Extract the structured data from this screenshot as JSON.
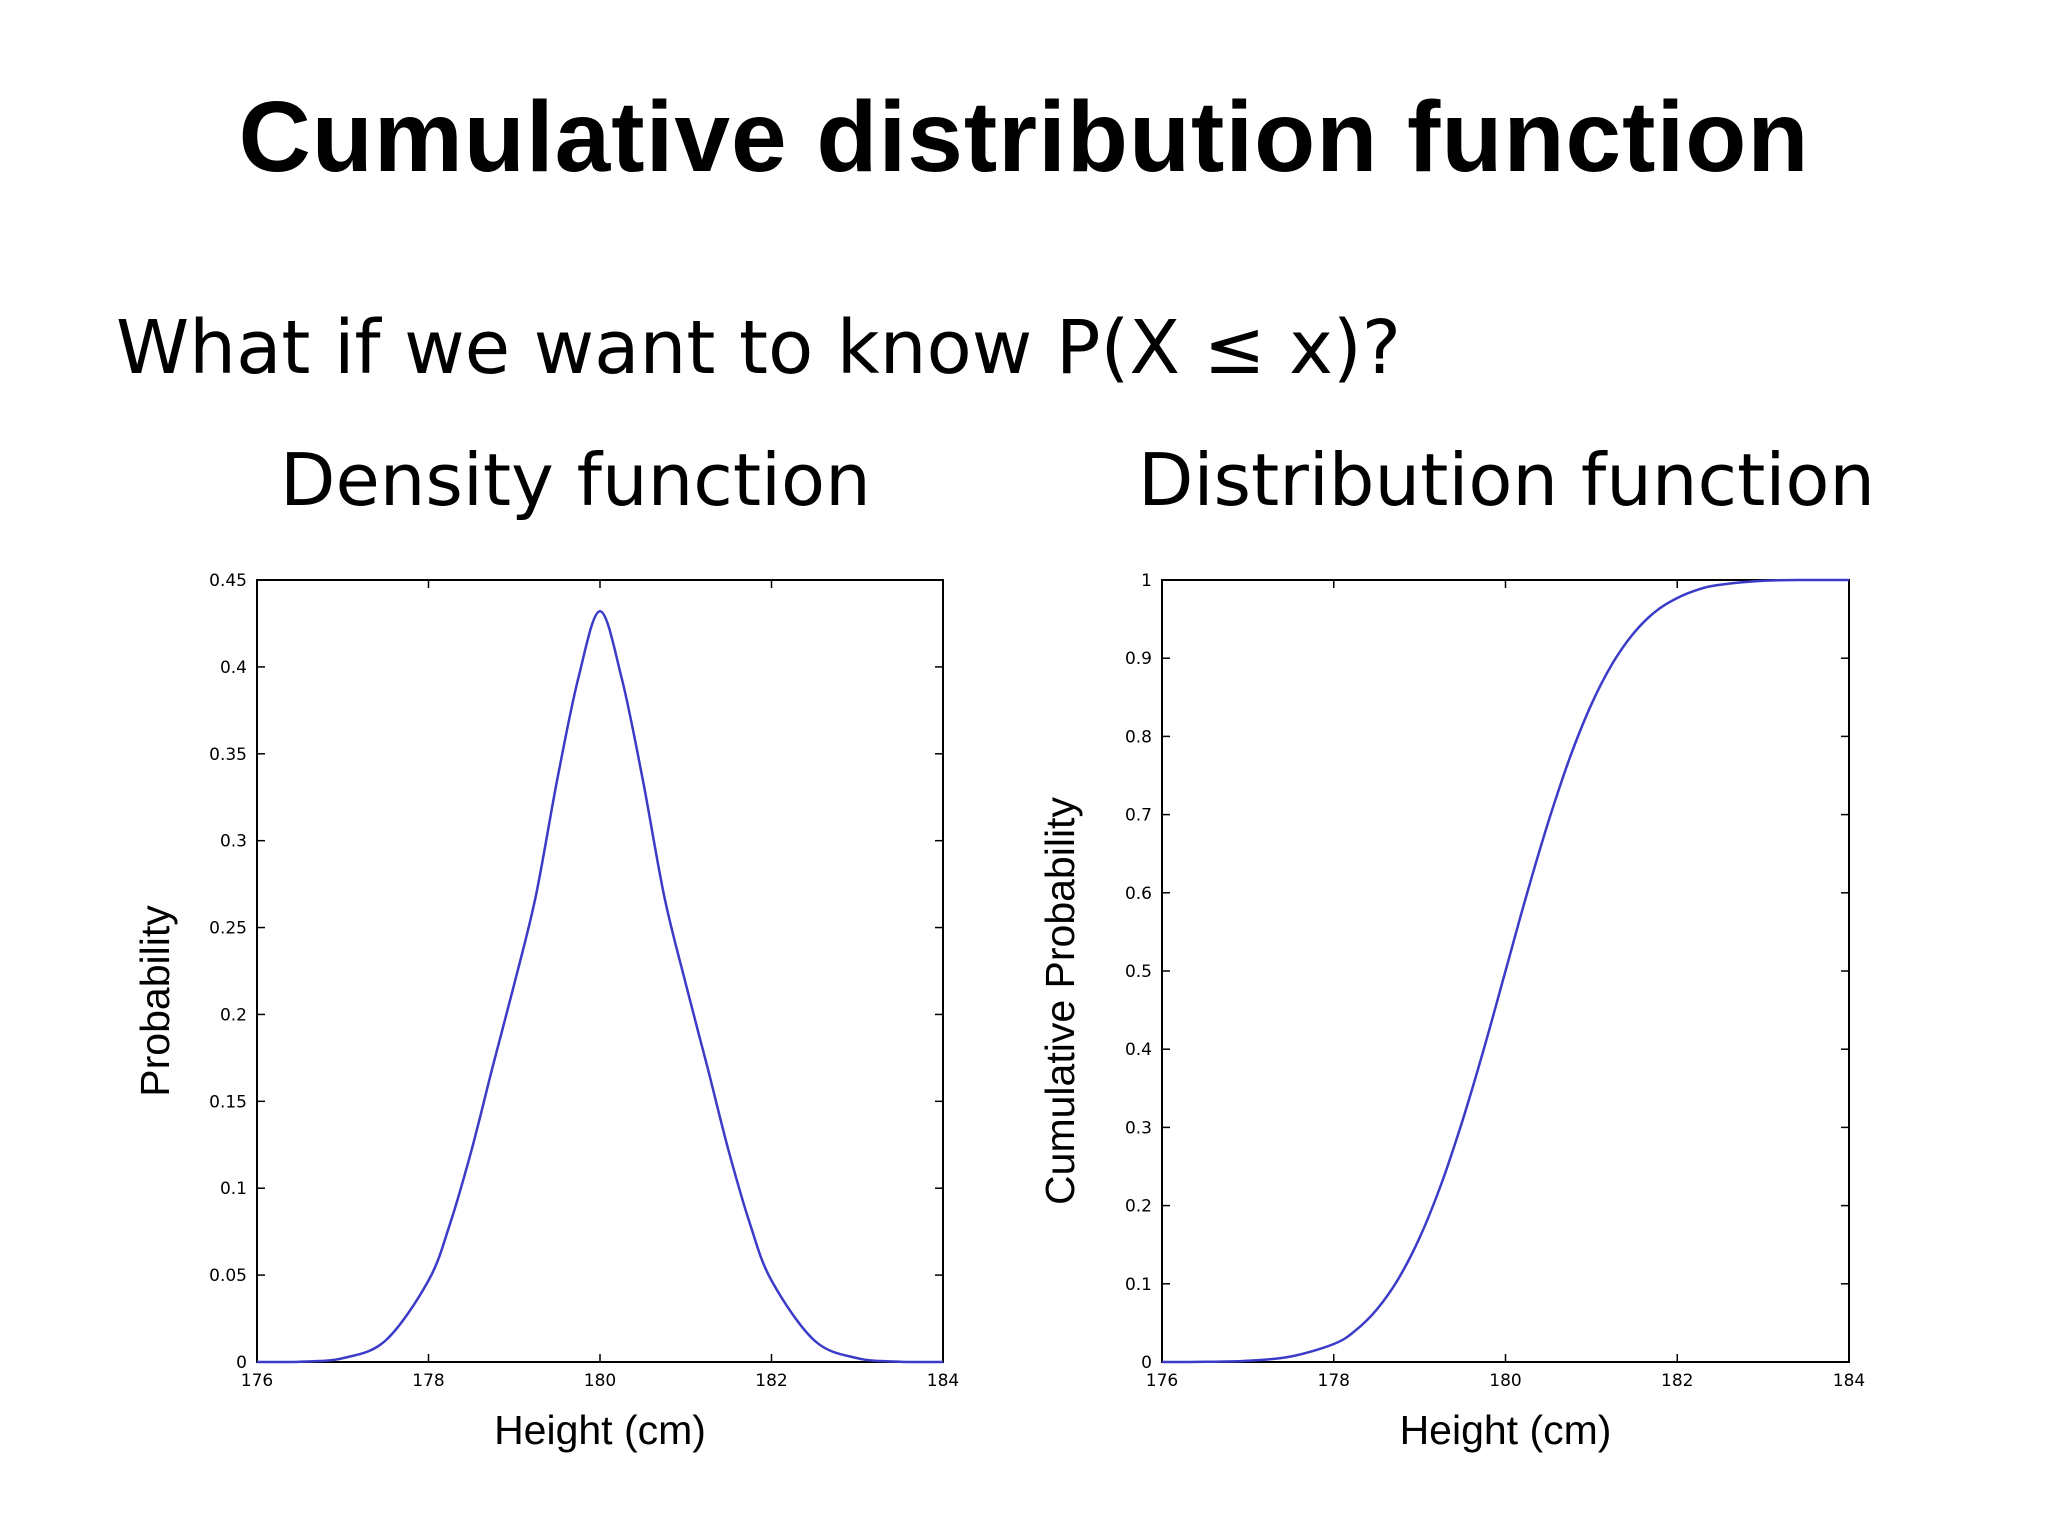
{
  "slide": {
    "title": "Cumulative distribution function",
    "question": "What if we want to know P(X ≤ x)?",
    "left_subtitle": "Density function",
    "right_subtitle": "Distribution function"
  },
  "colors": {
    "curve": "#3b3bc8",
    "axis": "#000000",
    "background": "#ffffff"
  },
  "chart_data": [
    {
      "type": "line",
      "title": "",
      "xlabel": "Height (cm)",
      "ylabel": "Probability",
      "xlim": [
        176,
        184
      ],
      "ylim": [
        0,
        0.45
      ],
      "xticks": [
        "176",
        "178",
        "180",
        "182",
        "184"
      ],
      "yticks": [
        "0",
        "0.05",
        "0.1",
        "0.15",
        "0.2",
        "0.25",
        "0.3",
        "0.35",
        "0.4",
        "0.45"
      ],
      "grid": false,
      "x": [
        176,
        176.5,
        177,
        177.5,
        178,
        178.25,
        178.5,
        178.75,
        179,
        179.25,
        179.5,
        179.75,
        180,
        180.25,
        180.5,
        180.75,
        181,
        181.25,
        181.5,
        181.75,
        182,
        182.5,
        183,
        183.5,
        184
      ],
      "y": [
        0,
        0.0002,
        0.0022,
        0.0124,
        0.0469,
        0.0793,
        0.1216,
        0.1702,
        0.2176,
        0.2678,
        0.3348,
        0.3942,
        0.432,
        0.3942,
        0.3348,
        0.2678,
        0.2176,
        0.1702,
        0.1216,
        0.0793,
        0.0469,
        0.0124,
        0.0022,
        0.0002,
        0
      ]
    },
    {
      "type": "line",
      "title": "",
      "xlabel": "Height (cm)",
      "ylabel": "Cumulative Probability",
      "xlim": [
        176,
        184
      ],
      "ylim": [
        0,
        1
      ],
      "xticks": [
        "176",
        "178",
        "180",
        "182",
        "184"
      ],
      "yticks": [
        "0",
        "0.1",
        "0.2",
        "0.3",
        "0.4",
        "0.5",
        "0.6",
        "0.7",
        "0.8",
        "0.9",
        "1"
      ],
      "grid": false,
      "x": [
        176,
        176.5,
        177,
        177.5,
        178,
        178.25,
        178.5,
        178.75,
        179,
        179.25,
        179.5,
        179.75,
        180,
        180.25,
        180.5,
        180.75,
        181,
        181.25,
        181.5,
        181.75,
        182,
        182.25,
        182.5,
        183,
        183.5,
        184
      ],
      "y": [
        0,
        0.0002,
        0.0015,
        0.007,
        0.023,
        0.04,
        0.067,
        0.106,
        0.159,
        0.227,
        0.309,
        0.401,
        0.5,
        0.599,
        0.691,
        0.773,
        0.841,
        0.894,
        0.933,
        0.96,
        0.977,
        0.988,
        0.994,
        0.999,
        1,
        1
      ]
    }
  ]
}
